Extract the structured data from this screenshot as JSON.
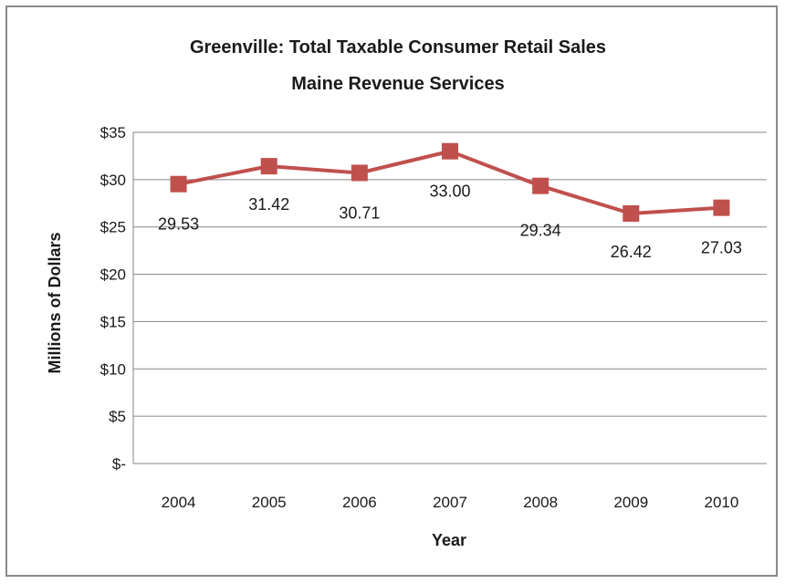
{
  "chart_data": {
    "type": "line",
    "title": "Greenville: Total Taxable Consumer Retail Sales",
    "subtitle": "Maine Revenue Services",
    "xlabel": "Year",
    "ylabel": "Millions of Dollars",
    "categories": [
      "2004",
      "2005",
      "2006",
      "2007",
      "2008",
      "2009",
      "2010"
    ],
    "series": [
      {
        "values": [
          29.53,
          31.42,
          30.71,
          33.0,
          29.34,
          26.42,
          27.03
        ],
        "labels": [
          "29.53",
          "31.42",
          "30.71",
          "33.00",
          "29.34",
          "26.42",
          "27.03"
        ],
        "color": "#c0504d",
        "marker": "square"
      }
    ],
    "ylim": [
      0,
      35
    ],
    "yticks": [
      0,
      5,
      10,
      15,
      20,
      25,
      30,
      35
    ],
    "ytick_labels": [
      "$-",
      "$5",
      "$10",
      "$15",
      "$20",
      "$25",
      "$30",
      "$35"
    ],
    "grid": true,
    "gridline_color": "#868686",
    "legend": "none"
  }
}
